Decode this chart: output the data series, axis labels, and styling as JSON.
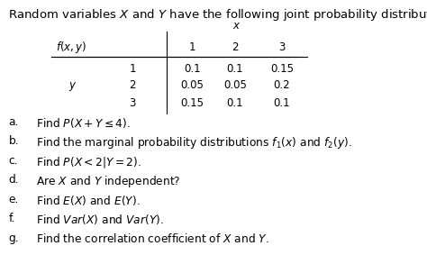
{
  "title": "Random variables $X$ and $Y$ have the following joint probability distribution.",
  "table_x_vals": [
    "1",
    "2",
    "3"
  ],
  "table_y_vals": [
    "1",
    "2",
    "3"
  ],
  "table_data": [
    [
      "0.1",
      "0.1",
      "0.15"
    ],
    [
      "0.05",
      "0.05",
      "0.2"
    ],
    [
      "0.15",
      "0.1",
      "0.1"
    ]
  ],
  "questions": [
    [
      "a.",
      "Find $P(X + Y \\leq 4)$."
    ],
    [
      "b.",
      "Find the marginal probability distributions $f_1(x)$ and $f_2(y)$."
    ],
    [
      "c.",
      "Find $P(X < 2|Y = 2)$."
    ],
    [
      "d.",
      "Are $X$ and $Y$ independent?"
    ],
    [
      "e.",
      "Find $E(X)$ and $E(Y)$."
    ],
    [
      "f.",
      "Find $Var(X)$ and $Var(Y)$."
    ],
    [
      "g.",
      "Find the correlation coefficient of $X$ and $Y$."
    ]
  ],
  "bg_color": "#ffffff",
  "text_color": "#000000",
  "fontsize_title": 9.5,
  "fontsize_table": 8.5,
  "fontsize_questions": 8.8
}
